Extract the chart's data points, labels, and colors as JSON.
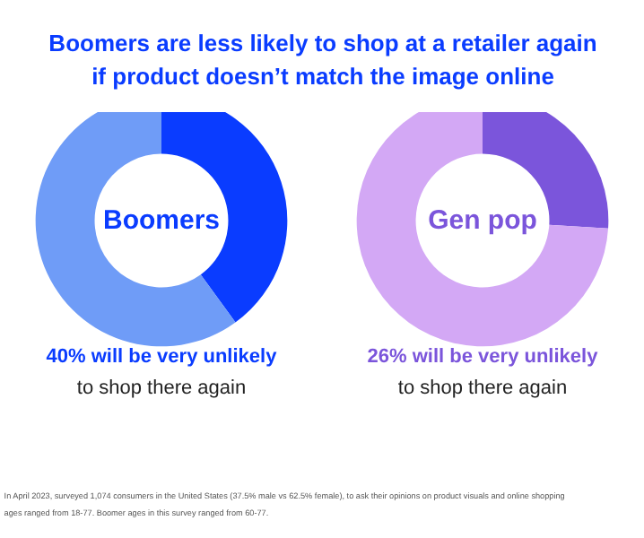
{
  "chart_data": [
    {
      "type": "other",
      "title": "Boomers are less likely to shop at a retailer again if product doesn’t match the image online",
      "annotations": [
        "In April 2023, surveyed 1,074 consumers in the United States (37.5% male vs 62.5% female), to ask their opinions on product visuals and online shopping",
        "ages ranged from 18-77. Boomer ages in this survey ranged from 60-77."
      ]
    },
    {
      "type": "donut",
      "title": "Boomers",
      "categories": [
        null,
        null
      ],
      "values": [
        40,
        60
      ],
      "colors": [
        "#0a3cff",
        "#6f9cf7"
      ],
      "annotations": [
        "40% will be very unlikely",
        "to shop there again"
      ]
    },
    {
      "type": "donut",
      "title": "Gen pop",
      "categories": [
        null,
        null
      ],
      "values": [
        26,
        74
      ],
      "colors": [
        "#7b55db",
        "#d3a8f5"
      ],
      "annotations": [
        "26% will be very unlikely",
        "to shop there again"
      ]
    }
  ]
}
